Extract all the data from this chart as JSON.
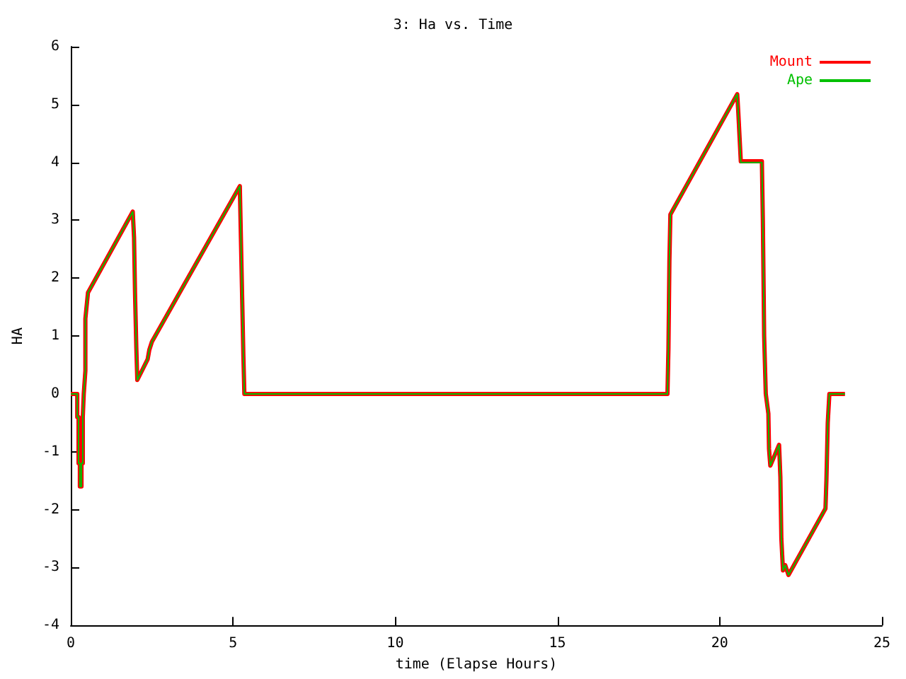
{
  "chart_data": {
    "type": "line",
    "title": "3: Ha vs. Time",
    "xlabel": "time (Elapse Hours)",
    "ylabel": "HA",
    "xlim": [
      0,
      25
    ],
    "xticks": [
      0,
      5,
      10,
      15,
      20,
      25
    ],
    "ylim": [
      -4,
      6
    ],
    "yticks": [
      -4,
      -3,
      -2,
      -1,
      0,
      1,
      2,
      3,
      4,
      5,
      6
    ],
    "grid": false,
    "legend": "top right",
    "marker": "none",
    "line_style": "solid",
    "series": [
      {
        "name": "Mount",
        "color": "#ff0000",
        "x": [
          0,
          0.2,
          0.2,
          0.24,
          0.24,
          0.28,
          0.28,
          0.33,
          0.33,
          0.37,
          0.37,
          0.4,
          0.4,
          0.45,
          0.45,
          0.53,
          1.91,
          1.95,
          1.98,
          2.02,
          2.05,
          2.37,
          2.42,
          2.5,
          5.21,
          5.27,
          5.32,
          5.35,
          18.39,
          18.42,
          18.45,
          18.48,
          20.54,
          20.57,
          20.62,
          20.65,
          21.3,
          21.33,
          21.37,
          21.42,
          21.5,
          21.52,
          21.56,
          21.83,
          21.87,
          21.9,
          21.95,
          22.02,
          22.12,
          23.26,
          23.29,
          23.33,
          23.38,
          23.86
        ],
        "values": [
          0,
          0,
          -0.4,
          -0.4,
          -1.2,
          -1.2,
          -1.6,
          -1.6,
          -1.2,
          -1.2,
          -0.4,
          -0.4,
          0,
          0.4,
          1.3,
          1.75,
          3.15,
          2.7,
          1.75,
          0.8,
          0.24,
          0.6,
          0.76,
          0.9,
          3.59,
          1.98,
          0.65,
          0,
          0,
          0.77,
          2.3,
          3.1,
          5.18,
          4.9,
          4.35,
          4.02,
          4.02,
          3,
          1,
          0,
          -0.34,
          -0.95,
          -1.24,
          -0.88,
          -1.44,
          -2.5,
          -3.05,
          -2.96,
          -3.13,
          -1.98,
          -1.47,
          -0.5,
          0,
          0
        ]
      },
      {
        "name": "Ape",
        "color": "#00c000",
        "x": [
          0,
          0.2,
          0.2,
          0.24,
          0.24,
          0.28,
          0.28,
          0.33,
          0.33,
          0.37,
          0.37,
          0.4,
          0.4,
          0.45,
          0.45,
          0.53,
          1.91,
          1.95,
          1.98,
          2.02,
          2.05,
          2.37,
          2.42,
          2.5,
          5.21,
          5.27,
          5.32,
          5.35,
          18.39,
          18.42,
          18.45,
          18.48,
          20.54,
          20.57,
          20.62,
          20.65,
          21.3,
          21.33,
          21.37,
          21.42,
          21.5,
          21.52,
          21.56,
          21.83,
          21.87,
          21.9,
          21.95,
          22.02,
          22.12,
          23.26,
          23.29,
          23.33,
          23.38,
          23.86
        ],
        "values": [
          0,
          0,
          -0.4,
          -0.4,
          -1.2,
          -1.2,
          -1.6,
          -1.6,
          -1.2,
          -1.2,
          -0.4,
          -0.4,
          0,
          0.4,
          1.3,
          1.75,
          3.15,
          2.7,
          1.75,
          0.8,
          0.24,
          0.6,
          0.76,
          0.9,
          3.59,
          1.98,
          0.65,
          0,
          0,
          0.77,
          2.3,
          3.1,
          5.18,
          4.9,
          4.35,
          4,
          4,
          3,
          1,
          0,
          -0.34,
          -0.95,
          -1.24,
          -0.88,
          -1.44,
          -2.5,
          -3.05,
          -2.96,
          -3.13,
          -1.98,
          -1.47,
          -0.5,
          0,
          0
        ]
      }
    ]
  }
}
